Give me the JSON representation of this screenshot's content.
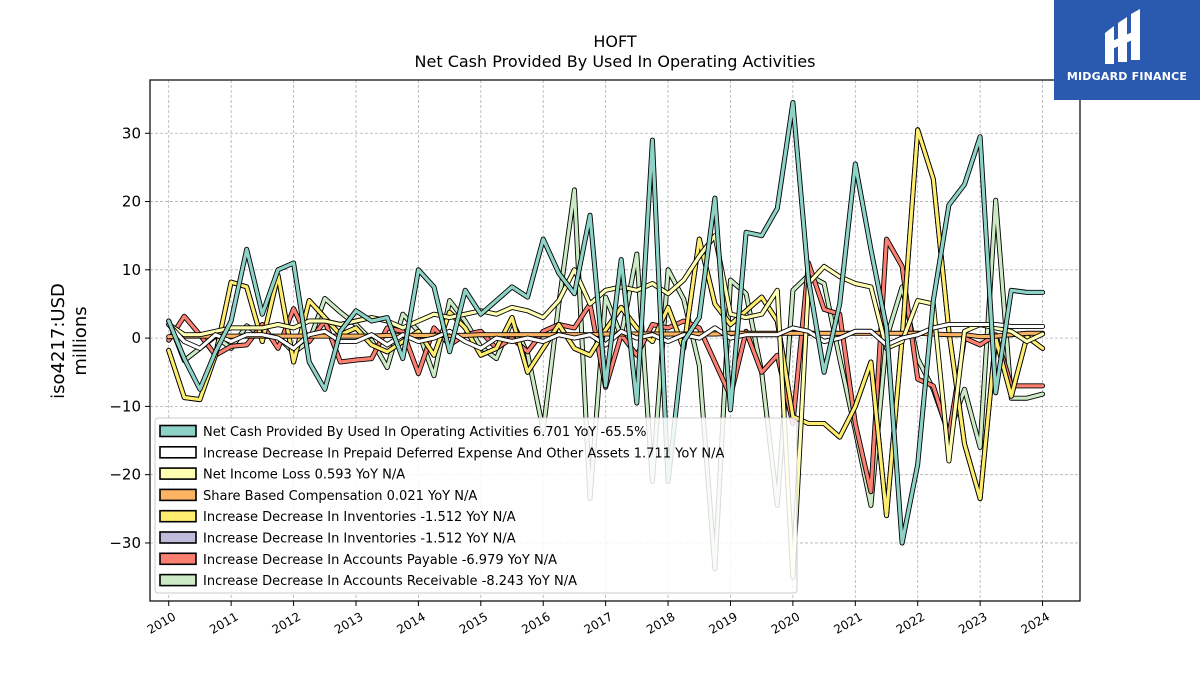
{
  "chart_data": {
    "type": "line",
    "title": "HOFT",
    "subtitle": "Net Cash Provided By Used In Operating Activities",
    "ylabel": "iso4217:USD",
    "ylabel2": "millions",
    "xlabel": "",
    "xlim": [
      2009.7,
      2024.6
    ],
    "ylim": [
      -38.5,
      37.8
    ],
    "grid": true,
    "legend_position": "lower-left",
    "x_ticks": [
      "2010",
      "2011",
      "2012",
      "2013",
      "2014",
      "2015",
      "2016",
      "2017",
      "2018",
      "2019",
      "2020",
      "2021",
      "2022",
      "2023",
      "2024"
    ],
    "y_ticks": [
      30,
      20,
      10,
      0,
      -10,
      -20,
      -30
    ],
    "y_tick_labels": [
      "30",
      "20",
      "10",
      "0",
      "−10",
      "−20",
      "−30"
    ],
    "x": [
      2010.0,
      2010.25,
      2010.5,
      2010.75,
      2011.0,
      2011.25,
      2011.5,
      2011.75,
      2012.0,
      2012.25,
      2012.5,
      2012.75,
      2013.0,
      2013.25,
      2013.5,
      2013.75,
      2014.0,
      2014.25,
      2014.5,
      2014.75,
      2015.0,
      2015.25,
      2015.5,
      2015.75,
      2016.0,
      2016.25,
      2016.5,
      2016.75,
      2017.0,
      2017.25,
      2017.5,
      2017.75,
      2018.0,
      2018.25,
      2018.5,
      2018.75,
      2019.0,
      2019.25,
      2019.5,
      2019.75,
      2020.0,
      2020.25,
      2020.5,
      2020.75,
      2021.0,
      2021.25,
      2021.5,
      2021.75,
      2022.0,
      2022.25,
      2022.5,
      2022.75,
      2023.0,
      2023.25,
      2023.5,
      2023.75,
      2024.0
    ],
    "series": [
      {
        "name": "Increase Decrease In Accounts Receivable",
        "legend_label": "Increase Decrease In Accounts Receivable  -8.243 YoY N/A",
        "color": "#ccebc5",
        "values": [
          2.5,
          -3.3,
          -1.5,
          0.3,
          -1.5,
          1.8,
          0.3,
          0.2,
          -2.1,
          -0.5,
          5.8,
          3.8,
          2.0,
          -0.3,
          -4.3,
          3.5,
          1.0,
          -5.5,
          5.5,
          2.5,
          -1.3,
          -3.0,
          2.5,
          -2.3,
          -13.5,
          5.0,
          21.7,
          -23.5,
          6.0,
          0.3,
          12.3,
          -21.0,
          10.0,
          5.7,
          -4.0,
          -33.8,
          8.5,
          6.5,
          -5.0,
          -24.5,
          7.0,
          9.2,
          8.0,
          -3.0,
          -13.5,
          -24.5,
          0.0,
          7.5,
          -3.0,
          -7.5,
          -14.0,
          -7.5,
          -16.0,
          20.2,
          -8.8,
          -8.8,
          -8.2
        ]
      },
      {
        "name": "Increase Decrease In Accounts Payable",
        "legend_label": "Increase Decrease In Accounts Payable  -6.979 YoY N/A",
        "color": "#fb8072",
        "values": [
          -0.3,
          3.2,
          0.5,
          -2.5,
          -1.2,
          -1.0,
          2.0,
          -1.5,
          4.3,
          -0.5,
          2.5,
          -3.5,
          -3.2,
          -3.0,
          1.5,
          1.0,
          -5.2,
          1.5,
          -1.0,
          0.5,
          1.0,
          -1.5,
          0.0,
          -2.0,
          1.0,
          2.0,
          1.5,
          5.0,
          -7.2,
          0.5,
          -2.5,
          2.0,
          1.5,
          2.5,
          1.5,
          -3.5,
          -8.5,
          1.0,
          -5.0,
          -2.5,
          -12.5,
          11.0,
          4.2,
          3.5,
          -12.5,
          -22.5,
          14.5,
          10.5,
          -6.0,
          -7.0,
          -14.3,
          0.0,
          -1.0,
          0.5,
          -7.0,
          -7.0,
          -7.0
        ]
      },
      {
        "name": "Increase Decrease In Inventories",
        "legend_label": "Increase Decrease In Inventories  -1.512 YoY N/A",
        "color": "#bebada",
        "values": [
          -1.8,
          -8.7,
          -9.0,
          -2.5,
          8.2,
          7.5,
          -0.5,
          9.2,
          -3.5,
          5.5,
          3.0,
          0.5,
          1.5,
          -1.0,
          -2.0,
          -0.5,
          1.0,
          -2.5,
          3.8,
          1.5,
          -2.5,
          -1.5,
          3.0,
          -5.0,
          -1.5,
          2.0,
          -1.5,
          -2.5,
          1.2,
          4.5,
          1.5,
          -0.5,
          4.5,
          -1.5,
          14.5,
          5.0,
          2.0,
          4.0,
          6.0,
          2.5,
          -11.5,
          -12.5,
          -12.5,
          -14.5,
          -10.0,
          -3.5,
          -26.0,
          0.0,
          30.5,
          23.3,
          1.0,
          -15.5,
          -23.5,
          0.0,
          -8.5,
          0.2,
          -1.5
        ]
      },
      {
        "name": "Increase Decrease In Inventories",
        "legend_label": "Increase Decrease In Inventories  -1.512 YoY N/A",
        "color": "#ffed6f",
        "values": [
          -1.8,
          -8.7,
          -9.0,
          -2.5,
          8.2,
          7.5,
          -0.5,
          9.2,
          -3.5,
          5.5,
          3.0,
          0.5,
          1.5,
          -1.0,
          -2.0,
          -0.5,
          1.0,
          -2.5,
          3.8,
          1.5,
          -2.5,
          -1.5,
          3.0,
          -5.0,
          -1.5,
          2.0,
          -1.5,
          -2.5,
          1.2,
          4.5,
          1.5,
          -0.5,
          4.5,
          -1.5,
          14.5,
          5.0,
          2.0,
          4.0,
          6.0,
          2.5,
          -11.5,
          -12.5,
          -12.5,
          -14.5,
          -10.0,
          -3.5,
          -26.0,
          0.0,
          30.5,
          23.3,
          1.0,
          -15.5,
          -23.5,
          0.0,
          -8.5,
          0.2,
          -1.5
        ]
      },
      {
        "name": "Share Based Compensation",
        "legend_label": "Share Based Compensation  0.021 YoY N/A",
        "color": "#fdb462",
        "values": [
          0.2,
          0.3,
          0.3,
          0.3,
          0.3,
          0.3,
          0.3,
          0.3,
          0.3,
          0.3,
          0.3,
          0.3,
          0.3,
          0.3,
          0.4,
          0.4,
          0.4,
          0.4,
          0.4,
          0.4,
          0.5,
          0.5,
          0.5,
          0.5,
          0.5,
          0.5,
          0.5,
          0.5,
          0.6,
          0.6,
          0.6,
          0.6,
          0.6,
          0.6,
          0.6,
          0.6,
          0.7,
          0.7,
          0.7,
          0.7,
          0.7,
          0.7,
          0.7,
          0.7,
          0.7,
          0.7,
          0.7,
          0.7,
          0.7,
          0.6,
          0.5,
          0.5,
          0.2,
          0.3,
          0.5,
          0.7,
          0.7
        ]
      },
      {
        "name": "Net Income Loss",
        "legend_label": "Net Income Loss  0.593 YoY N/A",
        "color": "#ffffb3",
        "values": [
          2.0,
          0.5,
          0.5,
          1.0,
          1.5,
          1.5,
          1.5,
          2.0,
          1.5,
          2.5,
          2.5,
          2.0,
          2.5,
          3.0,
          2.5,
          1.5,
          2.5,
          3.5,
          3.0,
          3.5,
          4.0,
          3.5,
          4.5,
          4.0,
          3.0,
          5.5,
          10.0,
          5.0,
          7.0,
          7.5,
          7.0,
          8.0,
          6.5,
          8.5,
          12.0,
          15.0,
          3.5,
          3.0,
          3.5,
          7.0,
          -35.0,
          8.0,
          10.5,
          9.0,
          8.0,
          7.5,
          -1.5,
          -0.5,
          5.5,
          5.0,
          -18.0,
          1.0,
          2.0,
          1.5,
          1.0,
          -0.5,
          0.6
        ]
      },
      {
        "name": "Increase Decrease In Prepaid Deferred Expense And Other Assets",
        "legend_label": "Increase Decrease In Prepaid Deferred Expense And Other Assets  1.711 YoY N/A",
        "color": "#ffffff",
        "values": [
          2.0,
          -0.5,
          -1.5,
          0.5,
          -0.5,
          0.5,
          0.5,
          0.0,
          -1.5,
          0.5,
          1.0,
          -0.5,
          -0.5,
          0.5,
          -1.0,
          0.5,
          -0.5,
          0.0,
          1.0,
          -0.5,
          -1.5,
          0.0,
          -0.5,
          0.0,
          -0.5,
          0.5,
          0.0,
          0.5,
          -1.0,
          1.0,
          0.0,
          0.5,
          -0.5,
          0.5,
          0.0,
          1.5,
          0.0,
          0.5,
          0.5,
          0.5,
          1.5,
          1.0,
          -0.5,
          0.0,
          1.0,
          1.0,
          -1.0,
          0.0,
          0.5,
          1.5,
          2.0,
          2.0,
          2.0,
          2.0,
          1.7,
          1.7,
          1.7
        ]
      },
      {
        "name": "Net Cash Provided By Used In Operating Activities",
        "legend_label": "Net Cash Provided By Used In Operating Activities  6.701 YoY -65.5%",
        "color": "#8dd3c7",
        "values": [
          2.5,
          -3.0,
          -7.5,
          -2.0,
          2.5,
          13.0,
          3.5,
          10.0,
          11.0,
          -3.5,
          -7.5,
          1.0,
          4.0,
          2.5,
          3.0,
          -3.0,
          10.0,
          7.5,
          -2.0,
          7.0,
          3.5,
          5.5,
          7.5,
          6.0,
          14.5,
          9.5,
          6.5,
          18.0,
          -7.0,
          11.5,
          -9.5,
          29.0,
          -21.0,
          -0.5,
          3.0,
          20.5,
          -10.5,
          15.5,
          15.0,
          19.0,
          34.5,
          8.5,
          -5.0,
          5.0,
          25.5,
          13.0,
          1.5,
          -30.0,
          -18.5,
          5.5,
          19.5,
          22.5,
          29.5,
          -8.0,
          7.0,
          6.7,
          6.7
        ]
      }
    ]
  },
  "logo": {
    "brand": "MIDGARD FINANCE",
    "bg_color": "#2a5ab0"
  }
}
